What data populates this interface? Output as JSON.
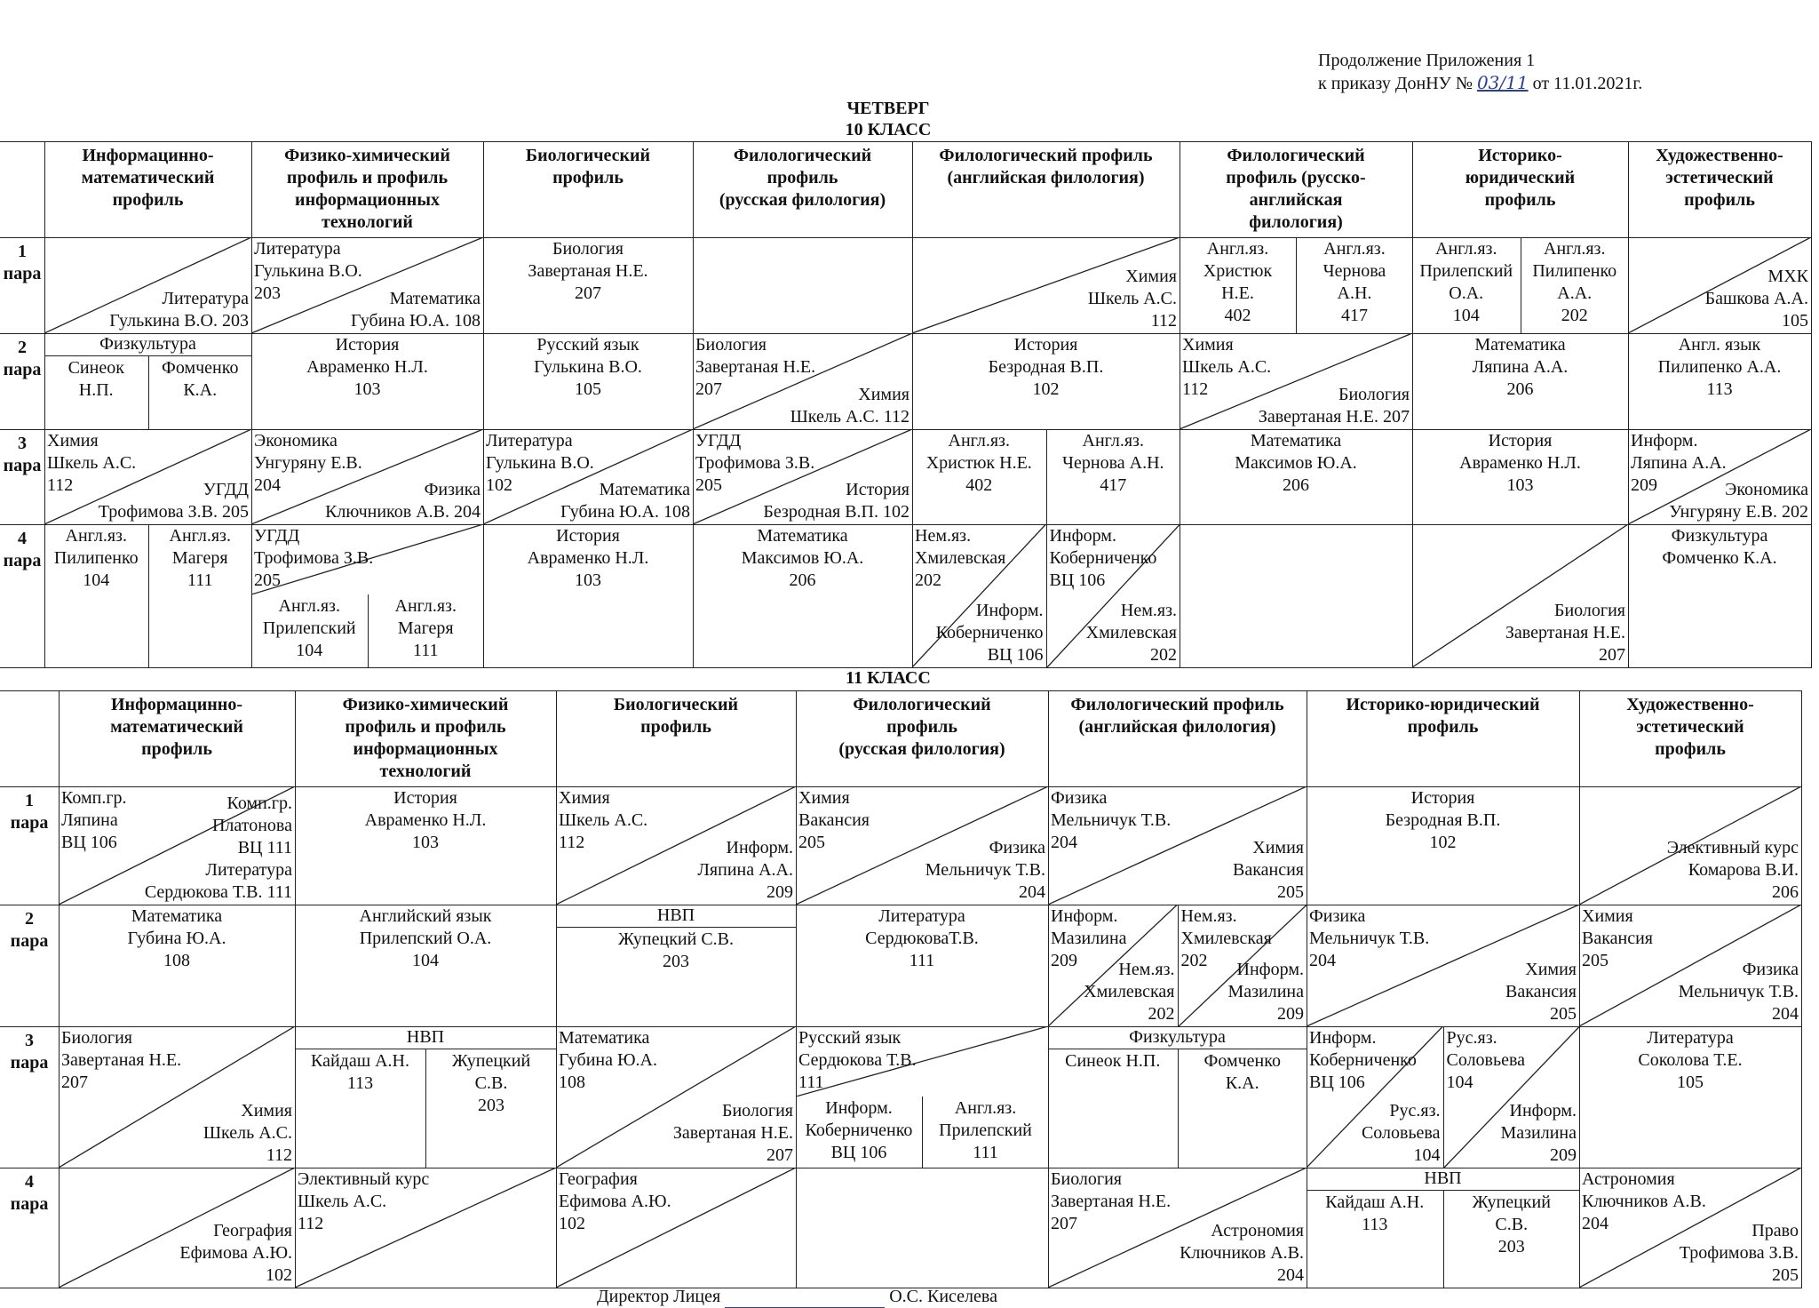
{
  "header": {
    "appendix": "Продолжение Приложения 1",
    "order": "к приказу ДонНУ №",
    "number": "03/11",
    "date": "от 11.01.2021г."
  },
  "day": "ЧЕТВЕРГ",
  "grades": [
    {
      "title": "10 КЛАСС",
      "columns": [
        [
          "Информацинно-",
          "математический",
          "профиль"
        ],
        [
          "Физико-химический",
          "профиль и профиль",
          "информационных",
          "технологий"
        ],
        [
          "Биологический",
          "профиль"
        ],
        [
          "Филологический",
          "профиль",
          "(русская филология)"
        ],
        [
          "Филологический профиль",
          "(английская филология)"
        ],
        [
          "Филологический",
          "профиль (русско-",
          "английская",
          "филология)"
        ],
        [
          "Историко-",
          "юридический",
          "профиль"
        ],
        [
          "Художественно-",
          "эстетический",
          "профиль"
        ]
      ],
      "rows": [
        {
          "label": [
            "1",
            "пара"
          ],
          "cells": [
            {
              "bottom": [
                "Литература",
                "Гулькина В.О. 203"
              ]
            },
            {
              "top": [
                "Литература",
                "Гулькина В.О.",
                "203"
              ],
              "bottom": [
                "Математика",
                "Губина Ю.А. 108"
              ]
            },
            {
              "lines": [
                "Биология",
                "Завертаная Н.Е.",
                "207"
              ]
            },
            null,
            {
              "bottom": [
                "Химия",
                "Шкель А.С.",
                "112"
              ]
            },
            {
              "parts": [
                {
                  "lines": [
                    "Англ.яз.",
                    "Христюк",
                    "Н.Е.",
                    "402"
                  ]
                },
                {
                  "lines": [
                    "Англ.яз.",
                    "Чернова",
                    "А.Н.",
                    "417"
                  ]
                }
              ]
            },
            {
              "parts": [
                {
                  "lines": [
                    "Англ.яз.",
                    "Прилепский",
                    "О.А.",
                    "104"
                  ]
                },
                {
                  "lines": [
                    "Англ.яз.",
                    "Пилипенко",
                    "А.А.",
                    "202"
                  ]
                }
              ]
            },
            {
              "bottom": [
                "МХК",
                "Башкова А.А.",
                "105"
              ]
            }
          ]
        },
        {
          "label": [
            "2",
            "пара"
          ],
          "cells": [
            {
              "head": "Физкультура",
              "parts": [
                {
                  "lines": [
                    "Синеок",
                    "Н.П."
                  ]
                },
                {
                  "lines": [
                    "Фомченко",
                    "К.А."
                  ]
                }
              ]
            },
            {
              "lines": [
                "История",
                "Авраменко Н.Л.",
                "103"
              ]
            },
            {
              "lines": [
                "Русский язык",
                "Гулькина В.О.",
                "105"
              ]
            },
            {
              "top": [
                "Биология",
                "Завертаная Н.Е.",
                "207"
              ],
              "bottom": [
                "Химия",
                "Шкель А.С. 112"
              ]
            },
            {
              "lines": [
                "История",
                "Безродная В.П.",
                "102"
              ]
            },
            {
              "top": [
                "Химия",
                "Шкель А.С.",
                "112"
              ],
              "bottom": [
                "Биология",
                "Завертаная Н.Е. 207"
              ]
            },
            {
              "lines": [
                "Математика",
                "Ляпина А.А.",
                "206"
              ]
            },
            {
              "lines": [
                "Англ. язык",
                "Пилипенко А.А.",
                "113"
              ]
            }
          ]
        },
        {
          "label": [
            "3",
            "пара"
          ],
          "cells": [
            {
              "top": [
                "Химия",
                "Шкель А.С.",
                "112"
              ],
              "bottom": [
                "УГДД",
                "Трофимова З.В. 205"
              ]
            },
            {
              "top": [
                "Экономика",
                "Унгуряну Е.В.",
                "204"
              ],
              "bottom": [
                "Физика",
                "Ключников А.В. 204"
              ]
            },
            {
              "top": [
                "Литература",
                "Гулькина В.О.",
                "102"
              ],
              "bottom": [
                "Математика",
                "Губина Ю.А. 108"
              ]
            },
            {
              "top": [
                "УГДД",
                "Трофимова З.В.",
                "205"
              ],
              "bottom": [
                "История",
                "Безродная В.П. 102"
              ]
            },
            {
              "parts": [
                {
                  "lines": [
                    "Англ.яз.",
                    "Христюк Н.Е.",
                    "402"
                  ]
                },
                {
                  "lines": [
                    "Англ.яз.",
                    "Чернова А.Н.",
                    "417"
                  ]
                }
              ]
            },
            {
              "lines": [
                "Математика",
                "Максимов Ю.А.",
                "206"
              ]
            },
            {
              "lines": [
                "История",
                "Авраменко Н.Л.",
                "103"
              ]
            },
            {
              "top": [
                "Информ.",
                "Ляпина А.А.",
                "209"
              ],
              "bottom": [
                "Экономика",
                "Унгуряну Е.В. 202"
              ]
            }
          ]
        },
        {
          "label": [
            "4",
            "пара"
          ],
          "cells": [
            {
              "parts": [
                {
                  "lines": [
                    "Англ.яз.",
                    "Пилипенко",
                    "104"
                  ]
                },
                {
                  "lines": [
                    "Англ.яз.",
                    "Магеря",
                    "111"
                  ]
                }
              ]
            },
            {
              "top": [
                "УГДД",
                "Трофимова З.В.",
                "205"
              ],
              "parts": [
                {
                  "lines": [
                    "Англ.яз.",
                    "Прилепский",
                    "104"
                  ]
                },
                {
                  "lines": [
                    "Англ.яз.",
                    "Магеря",
                    "111"
                  ]
                }
              ]
            },
            {
              "lines": [
                "История",
                "Авраменко Н.Л.",
                "103"
              ]
            },
            {
              "lines": [
                "Математика",
                "Максимов Ю.А.",
                "206"
              ]
            },
            {
              "parts": [
                {
                  "top": [
                    "Нем.яз.",
                    "Хмилевская",
                    "202"
                  ],
                  "bottom": [
                    "Информ.",
                    "Коберниченко",
                    "ВЦ 106"
                  ]
                },
                {
                  "top": [
                    "Информ.",
                    "Коберниченко",
                    "ВЦ 106"
                  ],
                  "bottom": [
                    "Нем.яз.",
                    "Хмилевская",
                    "202"
                  ]
                }
              ]
            },
            null,
            {
              "bottom": [
                "Биология",
                "Завертаная Н.Е.",
                "207"
              ]
            },
            {
              "lines": [
                "Физкультура",
                "Фомченко К.А."
              ]
            }
          ]
        }
      ]
    },
    {
      "title": "11 КЛАСС",
      "columns": [
        [
          "Информацинно-",
          "математический",
          "профиль"
        ],
        [
          "Физико-химический",
          "профиль и профиль",
          "информационных",
          "технологий"
        ],
        [
          "Биологический",
          "профиль"
        ],
        [
          "Филологический",
          "профиль",
          "(русская филология)"
        ],
        [
          "Филологический профиль",
          "(английская филология)"
        ],
        [
          "Историко-юридический",
          "профиль"
        ],
        [
          "Художественно-",
          "эстетический",
          "профиль"
        ]
      ],
      "rows": [
        {
          "label": [
            "1",
            "пара"
          ],
          "cells": [
            {
              "top": [
                "Комп.гр.",
                "Ляпина",
                "ВЦ 106"
              ],
              "bottom": [
                "Комп.гр.",
                "Платонова",
                "ВЦ 111",
                "Литература",
                "Сердюкова Т.В. 111"
              ]
            },
            {
              "lines": [
                "История",
                "Авраменко Н.Л.",
                "103"
              ]
            },
            {
              "top": [
                "Химия",
                "Шкель А.С.",
                "112"
              ],
              "bottom": [
                "Информ.",
                "Ляпина А.А.",
                "209"
              ]
            },
            {
              "top": [
                "Химия",
                "Вакансия",
                "205"
              ],
              "bottom": [
                "Физика",
                "Мельничук Т.В.",
                "204"
              ]
            },
            {
              "top": [
                "Физика",
                "Мельничук Т.В.",
                "204"
              ],
              "bottom": [
                "Химия",
                "Вакансия",
                "205"
              ]
            },
            {
              "lines": [
                "История",
                "Безродная В.П.",
                "102"
              ]
            },
            {
              "bottom": [
                "Элективный курс",
                "Комарова В.И.",
                "206"
              ]
            }
          ]
        },
        {
          "label": [
            "2",
            "пара"
          ],
          "cells": [
            {
              "lines": [
                "Математика",
                "Губина Ю.А.",
                "108"
              ]
            },
            {
              "lines": [
                "Английский язык",
                "Прилепский О.А.",
                "104"
              ]
            },
            {
              "head": "НВП",
              "lines": [
                "Жупецкий С.В.",
                "203"
              ]
            },
            {
              "lines": [
                "Литература",
                "СердюковаТ.В.",
                "111"
              ]
            },
            {
              "parts": [
                {
                  "top": [
                    "Информ.",
                    "Мазилина",
                    "209"
                  ],
                  "bottom": [
                    "Нем.яз.",
                    "Хмилевская",
                    "202"
                  ]
                },
                {
                  "top": [
                    "Нем.яз.",
                    "Хмилевская",
                    "202"
                  ],
                  "bottom": [
                    "Информ.",
                    "Мазилина",
                    "209"
                  ]
                }
              ]
            },
            {
              "top": [
                "Физика",
                "Мельничук Т.В.",
                "204"
              ],
              "bottom": [
                "Химия",
                "Вакансия",
                "205"
              ]
            },
            {
              "top": [
                "Химия",
                "Вакансия",
                "205"
              ],
              "bottom": [
                "Физика",
                "Мельничук Т.В.",
                "204"
              ]
            }
          ]
        },
        {
          "label": [
            "3",
            "пара"
          ],
          "cells": [
            {
              "top": [
                "Биология",
                "Завертаная Н.Е.",
                "207"
              ],
              "bottom": [
                "Химия",
                "Шкель А.С.",
                "112"
              ]
            },
            {
              "head": "НВП",
              "parts": [
                {
                  "lines": [
                    "Кайдаш А.Н.",
                    "113"
                  ]
                },
                {
                  "lines": [
                    "Жупецкий",
                    "С.В.",
                    "203"
                  ]
                }
              ]
            },
            {
              "top": [
                "Математика",
                "Губина Ю.А.",
                "108"
              ],
              "bottom": [
                "Биология",
                "Завертаная Н.Е.",
                "207"
              ]
            },
            {
              "top": [
                "Русский язык",
                "Сердюкова Т.В.",
                "111"
              ],
              "parts": [
                {
                  "lines": [
                    "Информ.",
                    "Коберниченко",
                    "ВЦ 106"
                  ]
                },
                {
                  "lines": [
                    "Англ.яз.",
                    "Прилепский",
                    "111"
                  ]
                }
              ]
            },
            {
              "head": "Физкультура",
              "parts": [
                {
                  "lines": [
                    "Синеок Н.П."
                  ]
                },
                {
                  "lines": [
                    "Фомченко",
                    "К.А."
                  ]
                }
              ]
            },
            {
              "parts": [
                {
                  "top": [
                    "Информ.",
                    "Коберниченко",
                    "ВЦ 106"
                  ],
                  "bottom": [
                    "Рус.яз.",
                    "Соловьева",
                    "104"
                  ]
                },
                {
                  "top": [
                    "Рус.яз.",
                    "Соловьева",
                    "104"
                  ],
                  "bottom": [
                    "Информ.",
                    "Мазилина",
                    "209"
                  ]
                }
              ]
            },
            {
              "lines": [
                "Литература",
                "Соколова Т.Е.",
                "105"
              ]
            }
          ]
        },
        {
          "label": [
            "4",
            "пара"
          ],
          "cells": [
            {
              "bottom": [
                "География",
                "Ефимова А.Ю.",
                "102"
              ]
            },
            {
              "top": [
                "Элективный курс",
                "Шкель А.С.",
                "112"
              ]
            },
            {
              "top": [
                "География",
                "Ефимова А.Ю.",
                "102"
              ]
            },
            null,
            {
              "top": [
                "Биология",
                "Завертаная Н.Е.",
                "207"
              ],
              "bottom": [
                "Астрономия",
                "Ключников А.В.",
                "204"
              ]
            },
            {
              "head": "НВП",
              "parts": [
                {
                  "lines": [
                    "Кайдаш А.Н.",
                    "113"
                  ]
                },
                {
                  "lines": [
                    "Жупецкий",
                    "С.В.",
                    "203"
                  ]
                }
              ]
            },
            {
              "top": [
                "Астрономия",
                "Ключников А.В.",
                "204"
              ],
              "bottom": [
                "Право",
                "Трофимова З.В.",
                "205"
              ]
            }
          ]
        }
      ]
    }
  ],
  "footer": {
    "position": "Директор Лицея",
    "name": "О.С. Киселева"
  }
}
